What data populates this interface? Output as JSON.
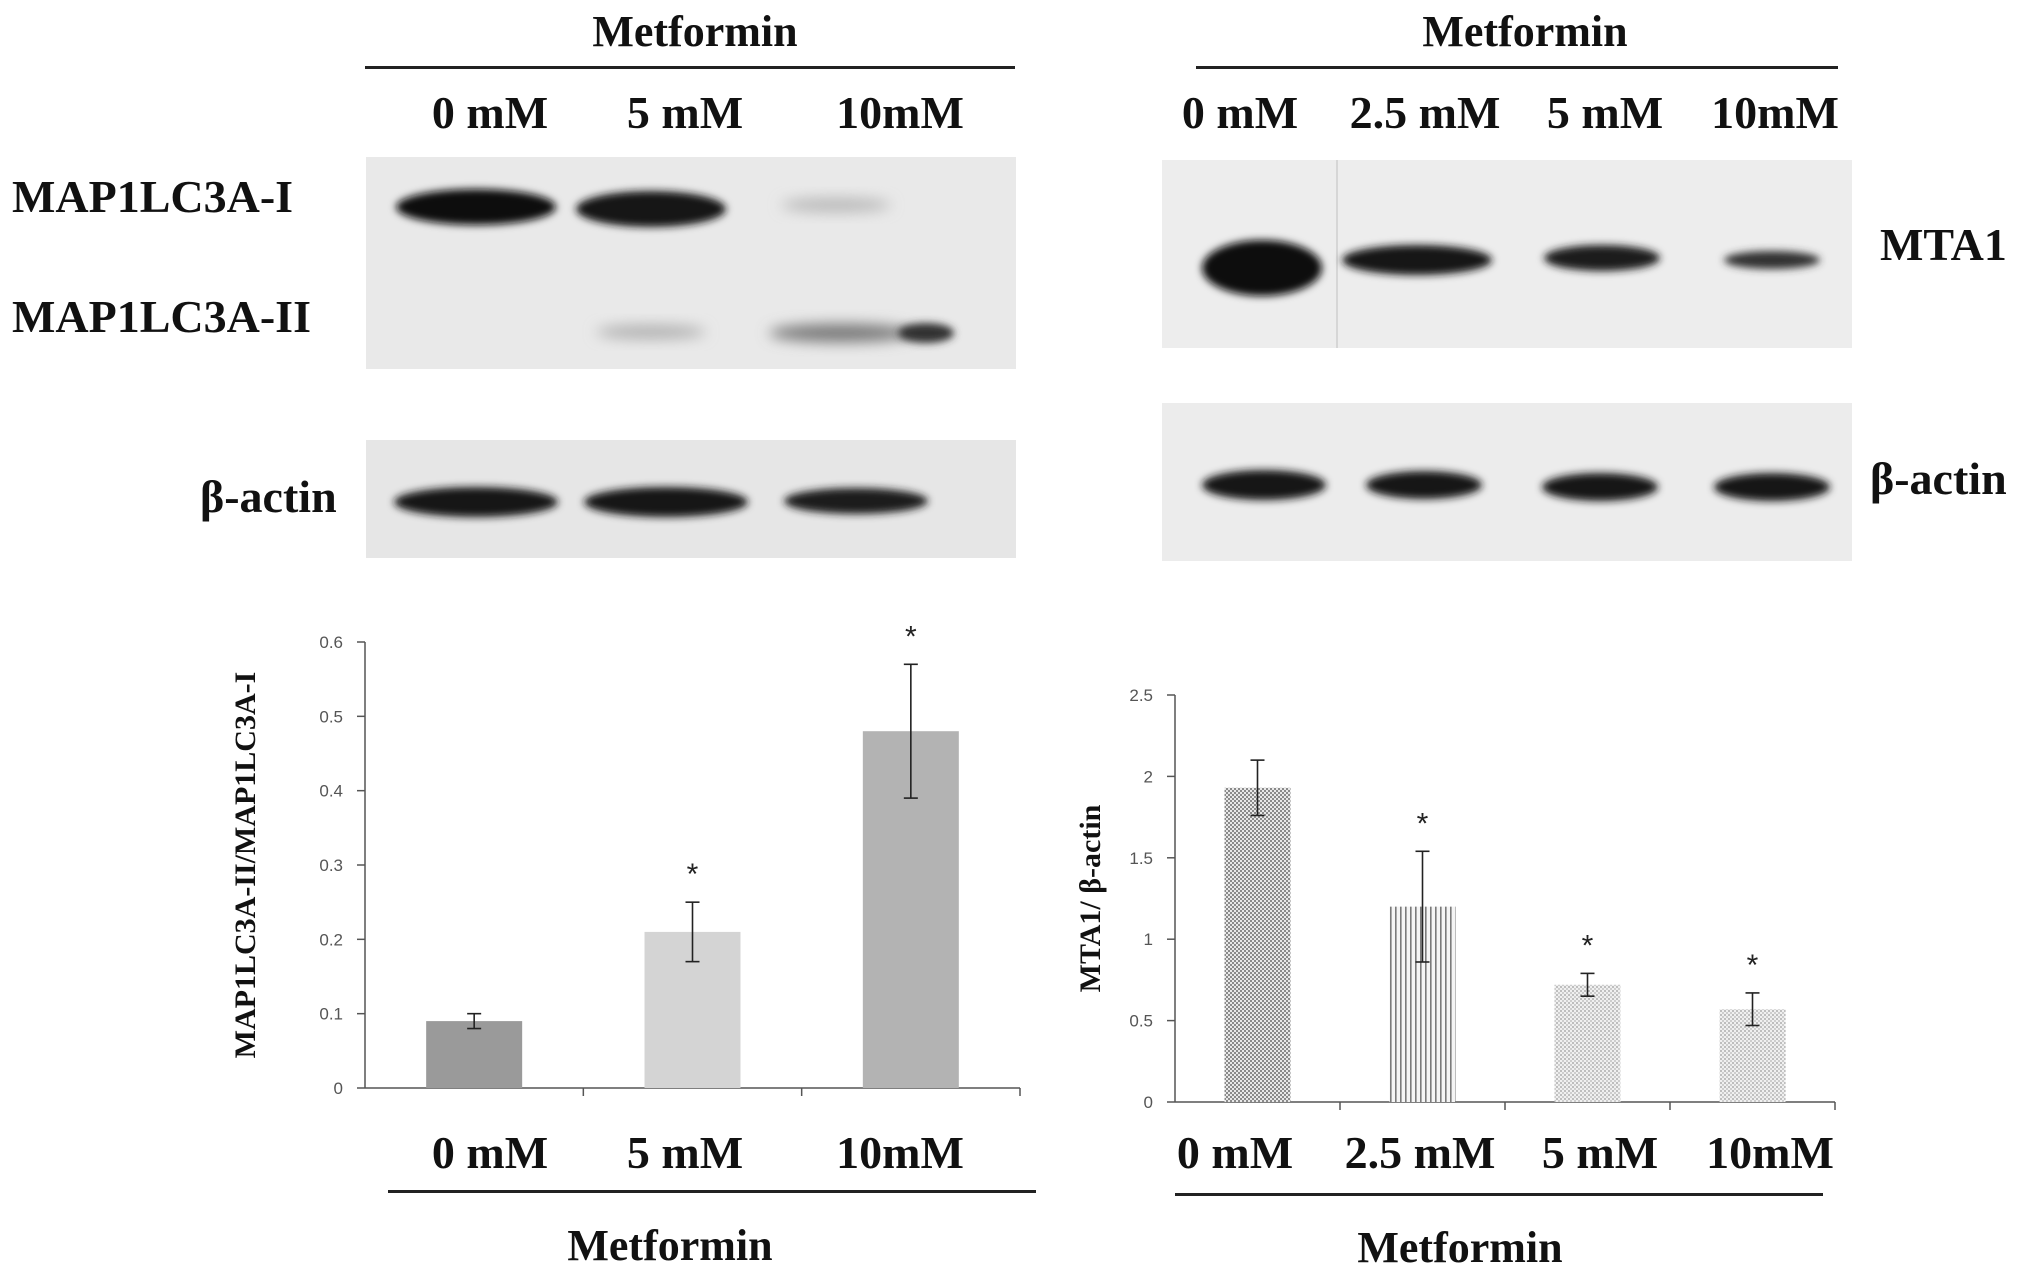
{
  "left_panel": {
    "top_header": "Metformin",
    "top_lanes": [
      "0 mM",
      "5 mM",
      "10mM"
    ],
    "blot_labels": {
      "band_1": "MAP1LC3A-I",
      "band_2": "MAP1LC3A-II",
      "loading": "β-actin"
    },
    "bottom_lanes": [
      "0 mM",
      "5 mM",
      "10mM"
    ],
    "bottom_header": "Metformin"
  },
  "right_panel": {
    "top_header": "Metformin",
    "top_lanes": [
      "0 mM",
      "2.5 mM",
      "5 mM",
      "10mM"
    ],
    "blot_labels": {
      "band_1": "MTA1",
      "loading": "β-actin"
    },
    "bottom_lanes": [
      "0 mM",
      "2.5 mM",
      "5 mM",
      "10mM"
    ],
    "bottom_header": "Metformin"
  },
  "chart_data": [
    {
      "type": "bar",
      "title": "",
      "xlabel": "Metformin",
      "ylabel": "MAP1LC3A-II/MAP1LC3A-I",
      "categories": [
        "0 mM",
        "5 mM",
        "10mM"
      ],
      "values": [
        0.09,
        0.21,
        0.48
      ],
      "errors": [
        0.01,
        0.04,
        0.09
      ],
      "significance": [
        "",
        "*",
        "*"
      ],
      "ylim": [
        0,
        0.6
      ],
      "yticks": [
        "0",
        "0.1",
        "0.2",
        "0.3",
        "0.4",
        "0.5",
        "0.6"
      ],
      "bar_colors": [
        "#9a9a9a",
        "#d4d4d4",
        "#b3b3b3"
      ],
      "grid": false
    },
    {
      "type": "bar",
      "title": "",
      "xlabel": "Metformin",
      "ylabel": "MTA1/ β-actin",
      "categories": [
        "0 mM",
        "2.5 mM",
        "5 mM",
        "10mM"
      ],
      "values": [
        1.93,
        1.2,
        0.72,
        0.57
      ],
      "errors": [
        0.17,
        0.34,
        0.07,
        0.1
      ],
      "significance": [
        "",
        "*",
        "*",
        "*"
      ],
      "ylim": [
        0,
        2.5
      ],
      "yticks": [
        "0",
        "0.5",
        "1",
        "1.5",
        "2",
        "2.5"
      ],
      "bar_patterns": [
        "checker",
        "vertical-lines",
        "dots",
        "dots"
      ],
      "grid": false
    }
  ]
}
